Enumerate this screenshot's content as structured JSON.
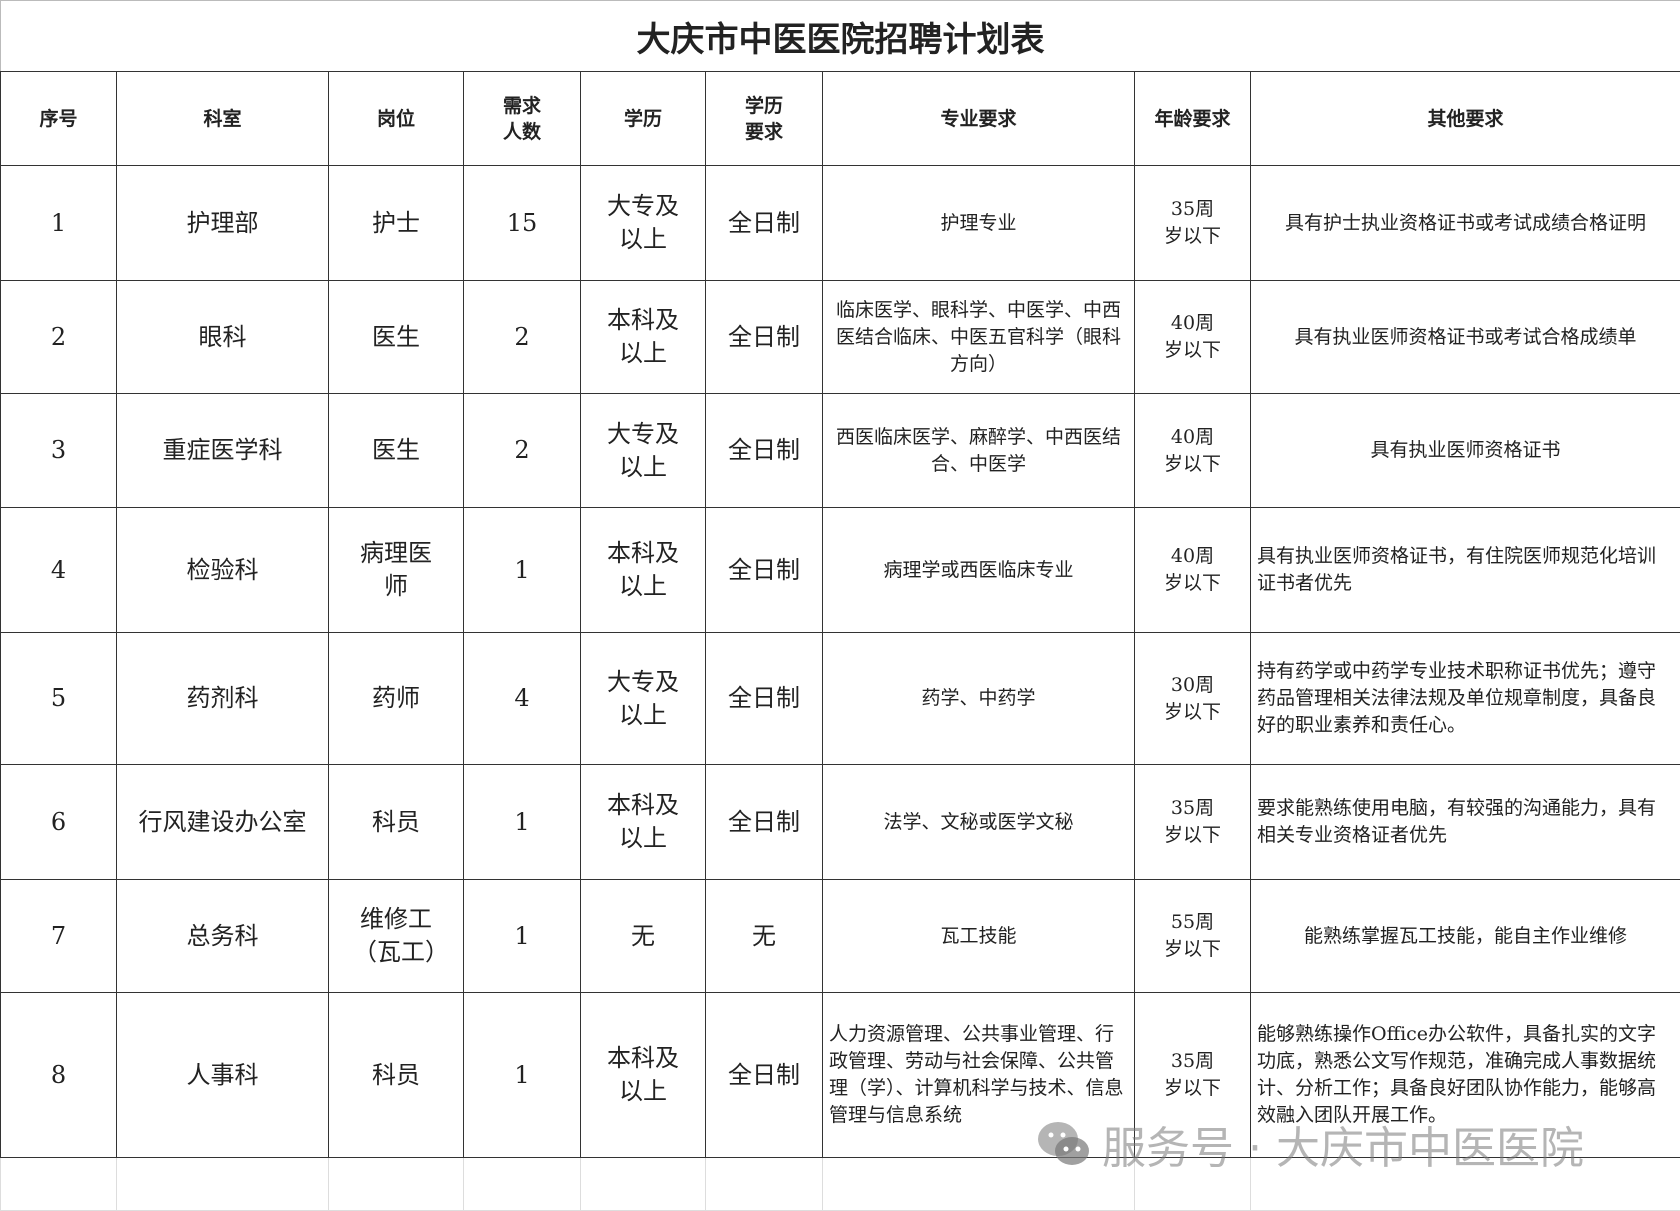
{
  "title": "大庆市中医医院招聘计划表",
  "headers": [
    "序号",
    "科室",
    "岗位",
    "需求人数",
    "学历",
    "学历要求",
    "专业要求",
    "年龄要求",
    "其他要求"
  ],
  "rows": [
    {
      "no": "1",
      "dept": "护理部",
      "post": "护士",
      "count": "15",
      "edu": "大专及以上",
      "mode": "全日制",
      "major": "护理专业",
      "age": "35周岁以下",
      "other": "具有护士执业资格证书或考试成绩合格证明"
    },
    {
      "no": "2",
      "dept": "眼科",
      "post": "医生",
      "count": "2",
      "edu": "本科及以上",
      "mode": "全日制",
      "major": "临床医学、眼科学、中医学、中西医结合临床、中医五官科学（眼科方向）",
      "age": "40周岁以下",
      "other": "具有执业医师资格证书或考试合格成绩单"
    },
    {
      "no": "3",
      "dept": "重症医学科",
      "post": "医生",
      "count": "2",
      "edu": "大专及以上",
      "mode": "全日制",
      "major": "西医临床医学、麻醉学、中西医结合、中医学",
      "age": "40周岁以下",
      "other": "具有执业医师资格证书"
    },
    {
      "no": "4",
      "dept": "检验科",
      "post": "病理医师",
      "count": "1",
      "edu": "本科及以上",
      "mode": "全日制",
      "major": "病理学或西医临床专业",
      "age": "40周岁以下",
      "other": "具有执业医师资格证书，有住院医师规范化培训证书者优先"
    },
    {
      "no": "5",
      "dept": "药剂科",
      "post": "药师",
      "count": "4",
      "edu": "大专及以上",
      "mode": "全日制",
      "major": "药学、中药学",
      "age": "30周岁以下",
      "other": "持有药学或中药学专业技术职称证书优先；遵守药品管理相关法律法规及单位规章制度，具备良好的职业素养和责任心。"
    },
    {
      "no": "6",
      "dept": "行风建设办公室",
      "post": "科员",
      "count": "1",
      "edu": "本科及以上",
      "mode": "全日制",
      "major": "法学、文秘或医学文秘",
      "age": "35周岁以下",
      "other": "要求能熟练使用电脑，有较强的沟通能力，具有相关专业资格证者优先"
    },
    {
      "no": "7",
      "dept": "总务科",
      "post": "维修工（瓦工）",
      "count": "1",
      "edu": "无",
      "mode": "无",
      "major": "瓦工技能",
      "age": "55周岁以下",
      "other": "能熟练掌握瓦工技能，能自主作业维修"
    },
    {
      "no": "8",
      "dept": "人事科",
      "post": "科员",
      "count": "1",
      "edu": "本科及以上",
      "mode": "全日制",
      "major": "人力资源管理、公共事业管理、行政管理、劳动与社会保障、公共管理（学）、计算机科学与技术、信息管理与信息系统",
      "age": "35周岁以下",
      "other": "能够熟练操作Office办公软件，具备扎实的文字功底，熟悉公文写作规范，准确完成人事数据统计、分析工作；具备良好团队协作能力，能够高效融入团队开展工作。"
    }
  ],
  "watermark": {
    "text": "服务号 · 大庆市中医医院",
    "icon": "wechat-icon"
  }
}
